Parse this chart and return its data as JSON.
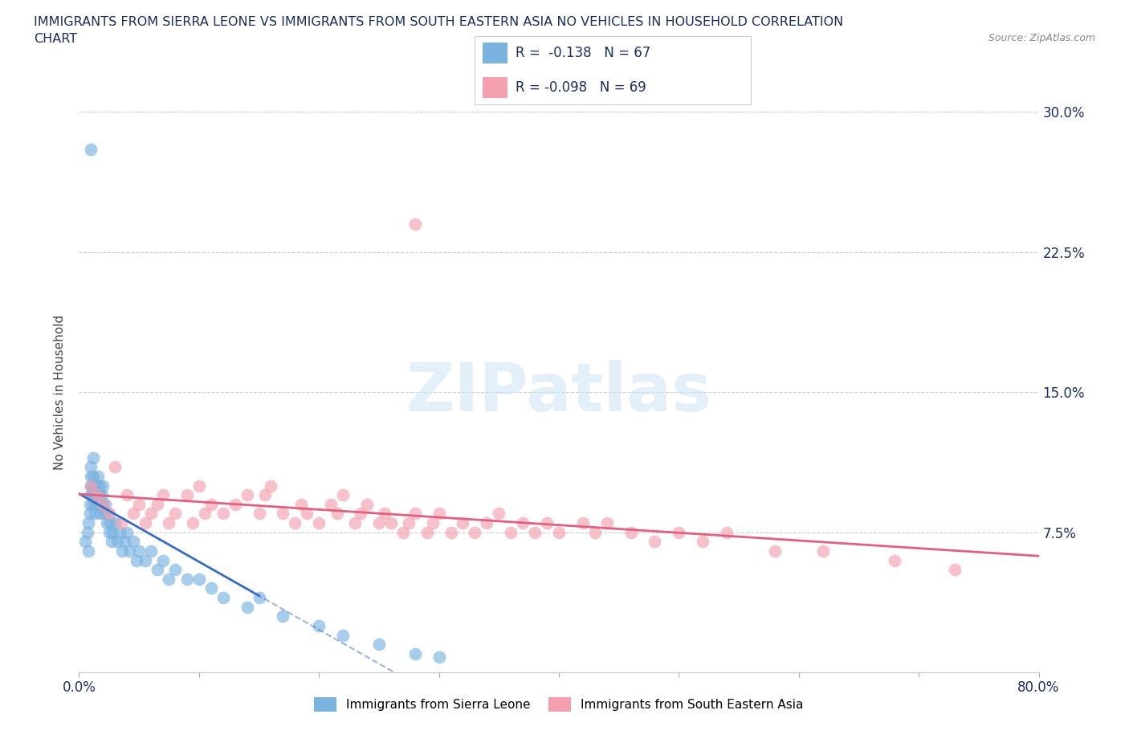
{
  "title_line1": "IMMIGRANTS FROM SIERRA LEONE VS IMMIGRANTS FROM SOUTH EASTERN ASIA NO VEHICLES IN HOUSEHOLD CORRELATION",
  "title_line2": "CHART",
  "source": "Source: ZipAtlas.com",
  "ylabel": "No Vehicles in Household",
  "xlim": [
    0.0,
    0.8
  ],
  "ylim": [
    0.0,
    0.3
  ],
  "xticks": [
    0.0,
    0.1,
    0.2,
    0.3,
    0.4,
    0.5,
    0.6,
    0.7,
    0.8
  ],
  "yticks": [
    0.0,
    0.075,
    0.15,
    0.225,
    0.3
  ],
  "watermark": "ZIPatlas",
  "R1": -0.138,
  "N1": 67,
  "R2": -0.098,
  "N2": 69,
  "color_sierra": "#7ab3e0",
  "color_sea": "#f4a0b0",
  "color_line_sierra": "#3a6dbf",
  "color_line_sea": "#e06080",
  "color_title": "#1a2e5a",
  "legend_label1": "Immigrants from Sierra Leone",
  "legend_label2": "Immigrants from South Eastern Asia",
  "sierra_x": [
    0.005,
    0.007,
    0.008,
    0.008,
    0.009,
    0.009,
    0.01,
    0.01,
    0.01,
    0.01,
    0.011,
    0.011,
    0.012,
    0.012,
    0.012,
    0.013,
    0.013,
    0.014,
    0.014,
    0.015,
    0.015,
    0.016,
    0.016,
    0.017,
    0.017,
    0.018,
    0.018,
    0.019,
    0.02,
    0.02,
    0.021,
    0.022,
    0.023,
    0.024,
    0.025,
    0.026,
    0.027,
    0.028,
    0.03,
    0.032,
    0.034,
    0.036,
    0.038,
    0.04,
    0.042,
    0.045,
    0.048,
    0.05,
    0.055,
    0.06,
    0.065,
    0.07,
    0.075,
    0.08,
    0.09,
    0.1,
    0.11,
    0.12,
    0.14,
    0.15,
    0.17,
    0.2,
    0.22,
    0.25,
    0.28,
    0.3,
    0.01
  ],
  "sierra_y": [
    0.07,
    0.075,
    0.065,
    0.08,
    0.085,
    0.09,
    0.1,
    0.095,
    0.105,
    0.11,
    0.095,
    0.1,
    0.09,
    0.105,
    0.115,
    0.085,
    0.095,
    0.09,
    0.1,
    0.095,
    0.1,
    0.105,
    0.09,
    0.095,
    0.1,
    0.09,
    0.085,
    0.095,
    0.1,
    0.09,
    0.085,
    0.09,
    0.08,
    0.085,
    0.075,
    0.08,
    0.07,
    0.075,
    0.08,
    0.07,
    0.075,
    0.065,
    0.07,
    0.075,
    0.065,
    0.07,
    0.06,
    0.065,
    0.06,
    0.065,
    0.055,
    0.06,
    0.05,
    0.055,
    0.05,
    0.05,
    0.045,
    0.04,
    0.035,
    0.04,
    0.03,
    0.025,
    0.02,
    0.015,
    0.01,
    0.008,
    0.28
  ],
  "sea_x": [
    0.01,
    0.015,
    0.02,
    0.025,
    0.03,
    0.035,
    0.04,
    0.045,
    0.05,
    0.055,
    0.06,
    0.065,
    0.07,
    0.075,
    0.08,
    0.09,
    0.095,
    0.1,
    0.105,
    0.11,
    0.12,
    0.13,
    0.14,
    0.15,
    0.155,
    0.16,
    0.17,
    0.18,
    0.185,
    0.19,
    0.2,
    0.21,
    0.215,
    0.22,
    0.23,
    0.235,
    0.24,
    0.25,
    0.255,
    0.26,
    0.27,
    0.275,
    0.28,
    0.29,
    0.295,
    0.3,
    0.31,
    0.32,
    0.33,
    0.34,
    0.35,
    0.36,
    0.37,
    0.38,
    0.39,
    0.4,
    0.42,
    0.43,
    0.44,
    0.46,
    0.48,
    0.5,
    0.52,
    0.54,
    0.58,
    0.62,
    0.68,
    0.73,
    0.28
  ],
  "sea_y": [
    0.1,
    0.095,
    0.09,
    0.085,
    0.11,
    0.08,
    0.095,
    0.085,
    0.09,
    0.08,
    0.085,
    0.09,
    0.095,
    0.08,
    0.085,
    0.095,
    0.08,
    0.1,
    0.085,
    0.09,
    0.085,
    0.09,
    0.095,
    0.085,
    0.095,
    0.1,
    0.085,
    0.08,
    0.09,
    0.085,
    0.08,
    0.09,
    0.085,
    0.095,
    0.08,
    0.085,
    0.09,
    0.08,
    0.085,
    0.08,
    0.075,
    0.08,
    0.085,
    0.075,
    0.08,
    0.085,
    0.075,
    0.08,
    0.075,
    0.08,
    0.085,
    0.075,
    0.08,
    0.075,
    0.08,
    0.075,
    0.08,
    0.075,
    0.08,
    0.075,
    0.07,
    0.075,
    0.07,
    0.075,
    0.065,
    0.065,
    0.06,
    0.055,
    0.24
  ]
}
